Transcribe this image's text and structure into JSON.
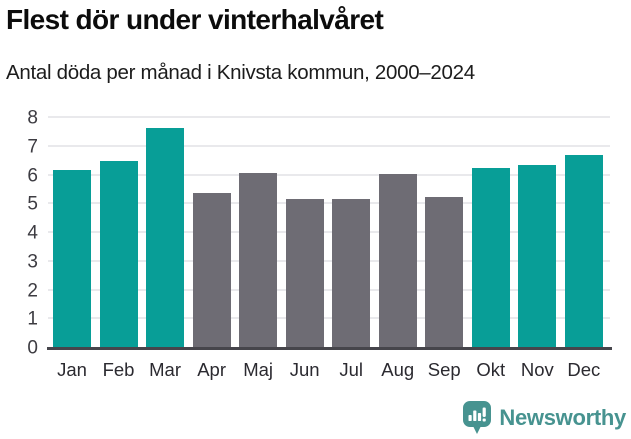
{
  "header": {
    "title": "Flest dör under vinterhalvåret",
    "subtitle": "Antal döda per månad i Knivsta kommun, 2000–2024"
  },
  "chart_data": {
    "type": "bar",
    "title": "Flest dör under vinterhalvåret",
    "subtitle": "Antal döda per månad i Knivsta kommun, 2000–2024",
    "categories": [
      "Jan",
      "Feb",
      "Mar",
      "Apr",
      "Maj",
      "Jun",
      "Jul",
      "Aug",
      "Sep",
      "Okt",
      "Nov",
      "Dec"
    ],
    "values": [
      6.2,
      6.5,
      7.65,
      5.4,
      6.1,
      5.2,
      5.2,
      6.05,
      5.25,
      6.25,
      6.35,
      6.7
    ],
    "bar_colors": [
      "teal",
      "teal",
      "teal",
      "gray",
      "gray",
      "gray",
      "gray",
      "gray",
      "gray",
      "teal",
      "teal",
      "teal"
    ],
    "palette": {
      "teal": "#089E97",
      "gray": "#6E6C74"
    },
    "highlighted_months": [
      "Jan",
      "Feb",
      "Mar",
      "Okt",
      "Nov",
      "Dec"
    ],
    "xlabel": "",
    "ylabel": "",
    "ylim": [
      0,
      8
    ],
    "yticks": [
      0,
      1,
      2,
      3,
      4,
      5,
      6,
      7,
      8
    ],
    "grid": true,
    "legend": false
  },
  "footer": {
    "brand": "Newsworthy",
    "brand_color": "#479390",
    "logo_icon": "bar-chart-speech-bubble-icon"
  }
}
